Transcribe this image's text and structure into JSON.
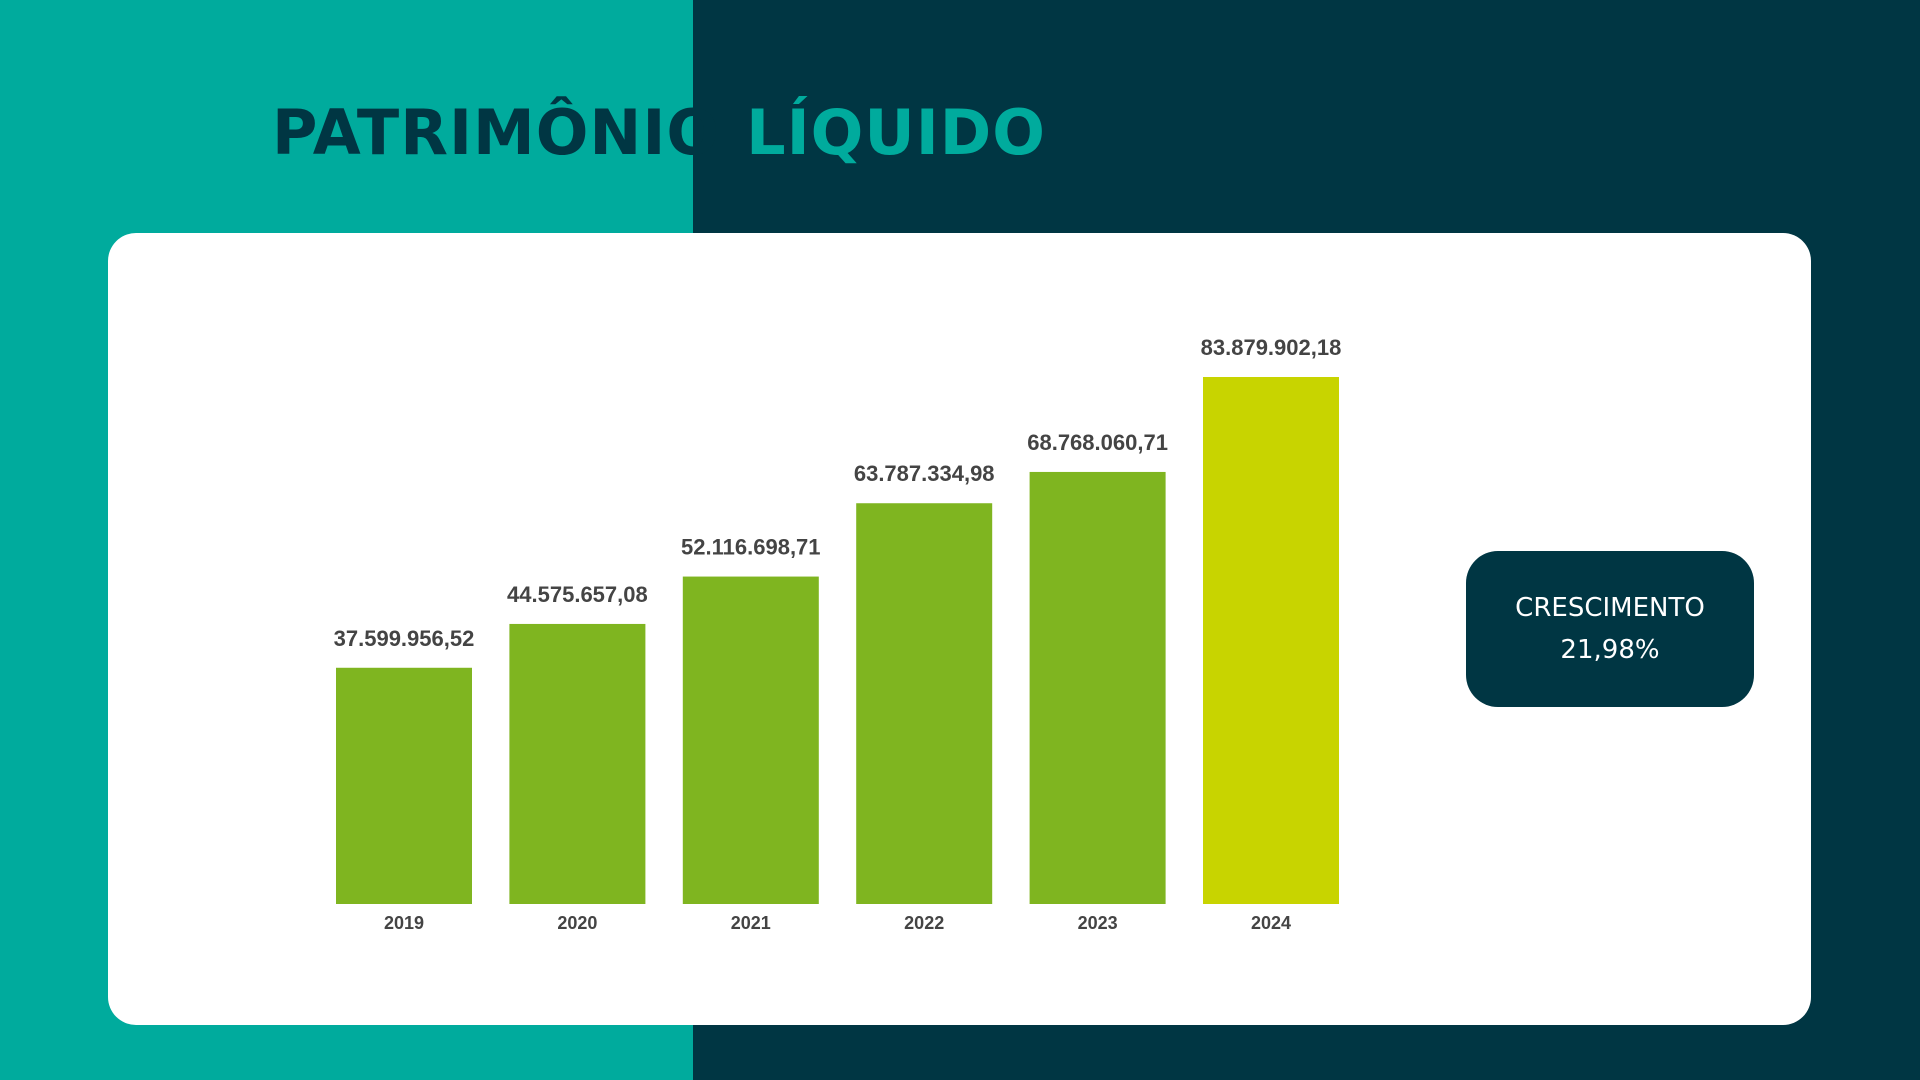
{
  "chart_data": {
    "type": "bar",
    "title": [
      "PATRIMÔNIO",
      "LÍQUIDO"
    ],
    "categories": [
      "2019",
      "2020",
      "2021",
      "2022",
      "2023",
      "2024"
    ],
    "values": [
      37599956.52,
      44575657.08,
      52116698.71,
      63787334.98,
      68768060.71,
      83879902.18
    ],
    "value_labels": [
      "37.599.956,52",
      "44.575.657,08",
      "52.116.698,71",
      "63.787.334,98",
      "68.768.060,71",
      "83.879.902,18"
    ],
    "colors": [
      "#7fb520",
      "#7fb520",
      "#7fb520",
      "#7fb520",
      "#7fb520",
      "#c8d400"
    ],
    "annotations": [
      "CRESCIMENTO",
      "21,98%"
    ]
  }
}
